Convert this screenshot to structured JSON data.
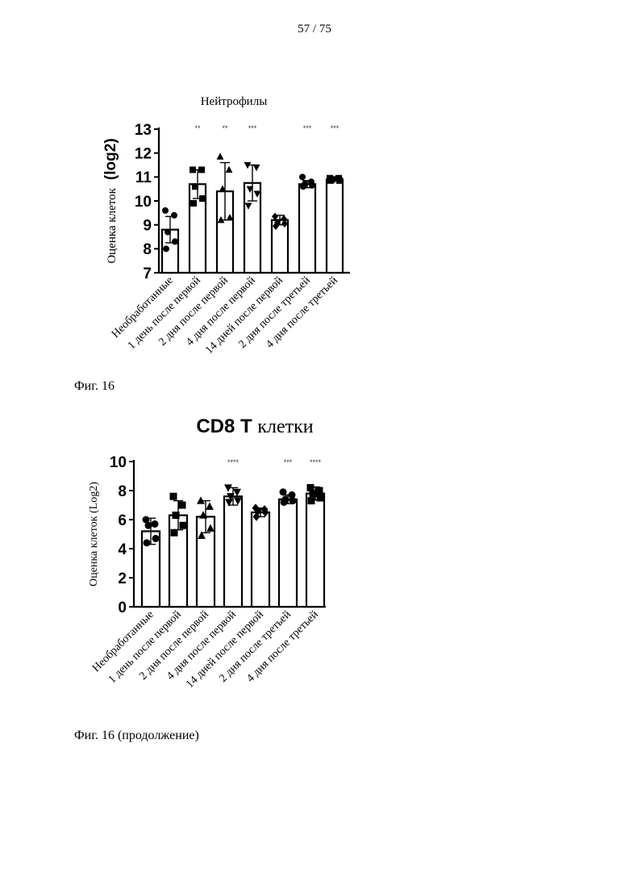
{
  "page_number": "57 / 75",
  "figures": [
    {
      "caption": "Фиг. 16"
    },
    {
      "caption": "Фиг. 16 (продолжение)"
    }
  ],
  "chart_data": [
    {
      "type": "bar",
      "title": "Нейтрофилы",
      "title_bold": "",
      "ylabel": "Оценка клеток",
      "ylabel_bold": "(log2)",
      "ylim": [
        7,
        13
      ],
      "yticks": [
        "7",
        "8",
        "9",
        "10",
        "11",
        "12",
        "13"
      ],
      "categories": [
        "Необработанные",
        "1 день после первой",
        "2 дня после первой",
        "4 дня после первой",
        "14 дней после первой",
        "2 дня после третьей",
        "4 дня после третьей"
      ],
      "values": [
        8.8,
        10.7,
        10.4,
        10.75,
        9.2,
        10.7,
        10.9
      ],
      "error": [
        0.55,
        0.6,
        1.2,
        0.75,
        0.2,
        0.15,
        0.05
      ],
      "significance": [
        "",
        "**",
        "**",
        "***",
        "",
        "***",
        "***"
      ],
      "markers": [
        "circle",
        "square",
        "triangle",
        "triangle-down",
        "diamond",
        "circle",
        "square"
      ],
      "points": [
        [
          9.6,
          9.4,
          8.7,
          8.3,
          8.0
        ],
        [
          11.3,
          11.3,
          10.6,
          10.1,
          9.9
        ],
        [
          11.85,
          11.3,
          10.5,
          9.3,
          9.2
        ],
        [
          11.5,
          11.4,
          10.5,
          10.3,
          9.8
        ],
        [
          9.35,
          9.25,
          9.1,
          9.05,
          8.95
        ],
        [
          11.0,
          10.8,
          10.7,
          10.65,
          10.6
        ],
        [
          10.95,
          10.95,
          10.9,
          10.85,
          10.85
        ]
      ]
    },
    {
      "type": "bar",
      "title": "клетки",
      "title_bold": "CD8 T",
      "ylabel": "Оценка клеток (Log2)",
      "ylabel_bold": "",
      "ylim": [
        0,
        10
      ],
      "yticks": [
        "0",
        "2",
        "4",
        "6",
        "8",
        "10"
      ],
      "categories": [
        "Необработанные",
        "1 день после первой",
        "2 дня после первой",
        "4 дня после первой",
        "14 дней после первой",
        "2 дня после третьей",
        "4 дня после третьей"
      ],
      "values": [
        5.2,
        6.3,
        6.2,
        7.6,
        6.5,
        7.4,
        7.8
      ],
      "error": [
        0.9,
        1.0,
        1.1,
        0.6,
        0.3,
        0.3,
        0.45
      ],
      "significance": [
        "",
        "",
        "",
        "****",
        "",
        "***",
        "****"
      ],
      "markers": [
        "circle",
        "square",
        "triangle",
        "triangle-down",
        "diamond",
        "circle",
        "square"
      ],
      "points": [
        [
          6.0,
          5.7,
          5.6,
          4.7,
          4.4
        ],
        [
          7.6,
          7.0,
          6.3,
          5.6,
          5.1
        ],
        [
          7.3,
          6.9,
          6.3,
          5.4,
          4.9
        ],
        [
          8.2,
          7.9,
          7.6,
          7.3,
          7.2
        ],
        [
          6.8,
          6.7,
          6.6,
          6.5,
          6.2
        ],
        [
          7.9,
          7.7,
          7.4,
          7.3,
          7.2
        ],
        [
          8.2,
          8.0,
          7.8,
          7.5,
          7.3
        ]
      ]
    }
  ]
}
